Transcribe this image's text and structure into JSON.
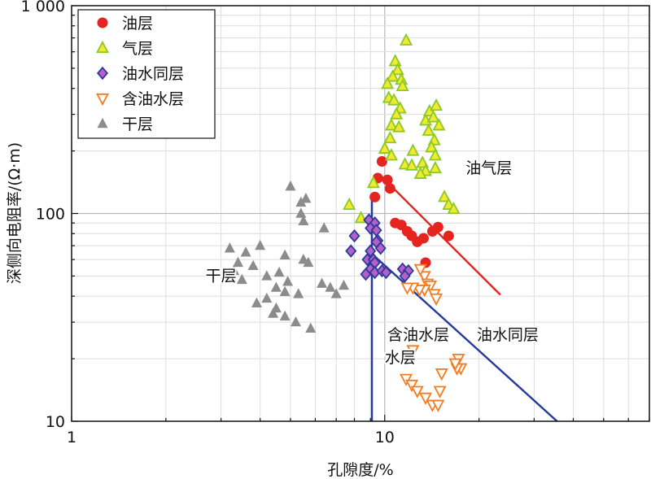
{
  "chart_data": {
    "type": "scatter",
    "xlabel": "孔隙度/%",
    "ylabel": "深侧向电阻率/(Ω·m)",
    "x_scale": "log",
    "y_scale": "log",
    "xlim": [
      1,
      70
    ],
    "ylim": [
      10,
      1000
    ],
    "x_ticks": [
      {
        "value": 1,
        "label": "1"
      },
      {
        "value": 10,
        "label": "10"
      }
    ],
    "y_ticks": [
      {
        "value": 10,
        "label": "10"
      },
      {
        "value": 100,
        "label": "100"
      },
      {
        "value": 1000,
        "label": "1 000"
      }
    ],
    "grid": true,
    "legend_position": "top-left",
    "series": [
      {
        "name": "油层",
        "marker": "circle",
        "color": "#e52420",
        "points": [
          [
            9.5,
            148
          ],
          [
            9.8,
            178
          ],
          [
            10.2,
            145
          ],
          [
            10.4,
            132
          ],
          [
            9.3,
            120
          ],
          [
            10.8,
            90
          ],
          [
            11.3,
            88
          ],
          [
            11.8,
            82
          ],
          [
            12.2,
            78
          ],
          [
            12.7,
            73
          ],
          [
            13.3,
            76
          ],
          [
            14.2,
            82
          ],
          [
            14.8,
            86
          ],
          [
            16.0,
            78
          ],
          [
            13.5,
            58
          ]
        ]
      },
      {
        "name": "气层",
        "marker": "triangle",
        "color": "#8ac926",
        "points": [
          [
            11.7,
            680
          ],
          [
            10.8,
            540
          ],
          [
            11.0,
            490
          ],
          [
            10.6,
            455
          ],
          [
            11.3,
            440
          ],
          [
            10.2,
            420
          ],
          [
            11.4,
            410
          ],
          [
            10.3,
            360
          ],
          [
            10.7,
            350
          ],
          [
            11.2,
            320
          ],
          [
            10.9,
            300
          ],
          [
            10.5,
            265
          ],
          [
            11.1,
            260
          ],
          [
            10.4,
            230
          ],
          [
            10.0,
            205
          ],
          [
            10.5,
            190
          ],
          [
            11.6,
            172
          ],
          [
            12.2,
            170
          ],
          [
            13.2,
            175
          ],
          [
            12.3,
            200
          ],
          [
            13.5,
            280
          ],
          [
            13.9,
            310
          ],
          [
            14.6,
            330
          ],
          [
            14.3,
            290
          ],
          [
            14.9,
            265
          ],
          [
            13.8,
            250
          ],
          [
            14.4,
            225
          ],
          [
            14.1,
            208
          ],
          [
            14.5,
            190
          ],
          [
            13.5,
            160
          ],
          [
            14.5,
            165
          ],
          [
            13.0,
            155
          ],
          [
            15.5,
            120
          ],
          [
            16.0,
            110
          ],
          [
            16.6,
            105
          ],
          [
            9.2,
            140
          ],
          [
            7.7,
            110
          ],
          [
            8.4,
            95
          ]
        ]
      },
      {
        "name": "油水同层",
        "marker": "diamond",
        "color": "#6a4fa8",
        "points": [
          [
            8.9,
            93
          ],
          [
            9.3,
            90
          ],
          [
            9.0,
            85
          ],
          [
            9.4,
            83
          ],
          [
            9.5,
            74
          ],
          [
            9.4,
            73
          ],
          [
            9.7,
            68
          ],
          [
            8.0,
            78
          ],
          [
            7.8,
            66
          ],
          [
            9.0,
            66
          ],
          [
            8.8,
            60
          ],
          [
            9.2,
            60
          ],
          [
            9.3,
            58
          ],
          [
            9.0,
            54
          ],
          [
            9.3,
            52
          ],
          [
            9.8,
            53
          ],
          [
            8.7,
            51
          ],
          [
            10.1,
            52
          ],
          [
            11.4,
            54
          ],
          [
            11.9,
            53
          ],
          [
            11.6,
            50
          ]
        ]
      },
      {
        "name": "含油水层",
        "marker": "triangle-down",
        "color": "#f47b20",
        "points": [
          [
            13.4,
            50
          ],
          [
            13.0,
            54
          ],
          [
            13.7,
            46
          ],
          [
            14.0,
            45
          ],
          [
            13.4,
            43
          ],
          [
            14.4,
            41
          ],
          [
            14.6,
            39
          ],
          [
            12.9,
            43
          ],
          [
            12.3,
            44
          ],
          [
            11.8,
            44
          ],
          [
            12.3,
            22
          ],
          [
            11.7,
            16
          ],
          [
            12.2,
            15
          ],
          [
            12.7,
            14
          ],
          [
            13.5,
            13
          ],
          [
            14.2,
            12
          ],
          [
            14.8,
            12
          ],
          [
            15.0,
            14
          ],
          [
            15.2,
            17
          ],
          [
            17.2,
            20
          ],
          [
            17.5,
            18
          ],
          [
            17.0,
            18
          ],
          [
            16.8,
            19
          ]
        ]
      },
      {
        "name": "干层",
        "marker": "triangle-filled",
        "color": "#8c8c8c",
        "points": [
          [
            5.0,
            135
          ],
          [
            5.6,
            118
          ],
          [
            5.4,
            113
          ],
          [
            5.4,
            100
          ],
          [
            5.5,
            92
          ],
          [
            6.4,
            85
          ],
          [
            3.2,
            68
          ],
          [
            3.6,
            65
          ],
          [
            4.0,
            70
          ],
          [
            4.8,
            63
          ],
          [
            5.5,
            60
          ],
          [
            5.7,
            58
          ],
          [
            3.4,
            58
          ],
          [
            3.3,
            53
          ],
          [
            3.8,
            56
          ],
          [
            4.2,
            50
          ],
          [
            4.6,
            52
          ],
          [
            3.5,
            48
          ],
          [
            4.9,
            47
          ],
          [
            6.3,
            46
          ],
          [
            6.7,
            44
          ],
          [
            7.4,
            45
          ],
          [
            4.5,
            44
          ],
          [
            4.8,
            42
          ],
          [
            5.3,
            41
          ],
          [
            7.0,
            41
          ],
          [
            4.2,
            39
          ],
          [
            3.9,
            37
          ],
          [
            4.5,
            35
          ],
          [
            4.4,
            33
          ],
          [
            4.8,
            32
          ],
          [
            5.2,
            30
          ],
          [
            5.8,
            28
          ]
        ]
      }
    ],
    "lines": [
      {
        "color": "#e52420",
        "points": [
          [
            9.8,
            150
          ],
          [
            23.4,
            40.6
          ]
        ]
      },
      {
        "color": "#263a99",
        "points": [
          [
            9.1,
            120
          ],
          [
            9.1,
            10
          ]
        ]
      },
      {
        "color": "#263a99",
        "points": [
          [
            9.2,
            63
          ],
          [
            35.5,
            10
          ]
        ]
      }
    ],
    "region_labels": [
      {
        "text": "油气层",
        "x": 21.5,
        "y": 165
      },
      {
        "text": "干层",
        "x": 3.0,
        "y": 50
      },
      {
        "text": "含油水层",
        "x": 12.8,
        "y": 26
      },
      {
        "text": "水层",
        "x": 11.2,
        "y": 20.2
      },
      {
        "text": "油水同层",
        "x": 24.7,
        "y": 26
      }
    ]
  }
}
